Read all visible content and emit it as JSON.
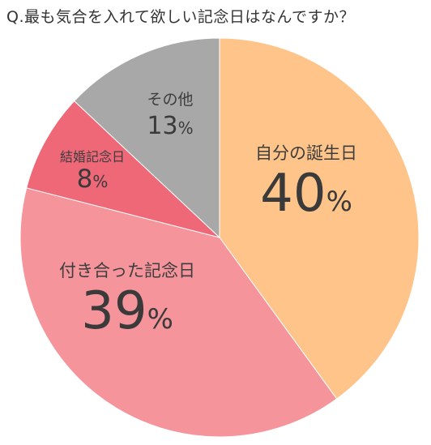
{
  "chart_data": {
    "type": "pie",
    "title": "Q.最も気合を入れて欲しい記念日はなんですか？",
    "slices": [
      {
        "label": "自分の誕生日",
        "value": 40,
        "display": "40",
        "unit": "%",
        "color": "#FEC489"
      },
      {
        "label": "付き合った記念日",
        "value": 39,
        "display": "39",
        "unit": "%",
        "color": "#F5949B"
      },
      {
        "label": "結婚記念日",
        "value": 8,
        "display": "8",
        "unit": "%",
        "color": "#EF6878"
      },
      {
        "label": "その他",
        "value": 13,
        "display": "13",
        "unit": "%",
        "color": "#A8A8A8"
      }
    ],
    "start": "12 o'clock",
    "direction": "clockwise",
    "legend": "none"
  }
}
